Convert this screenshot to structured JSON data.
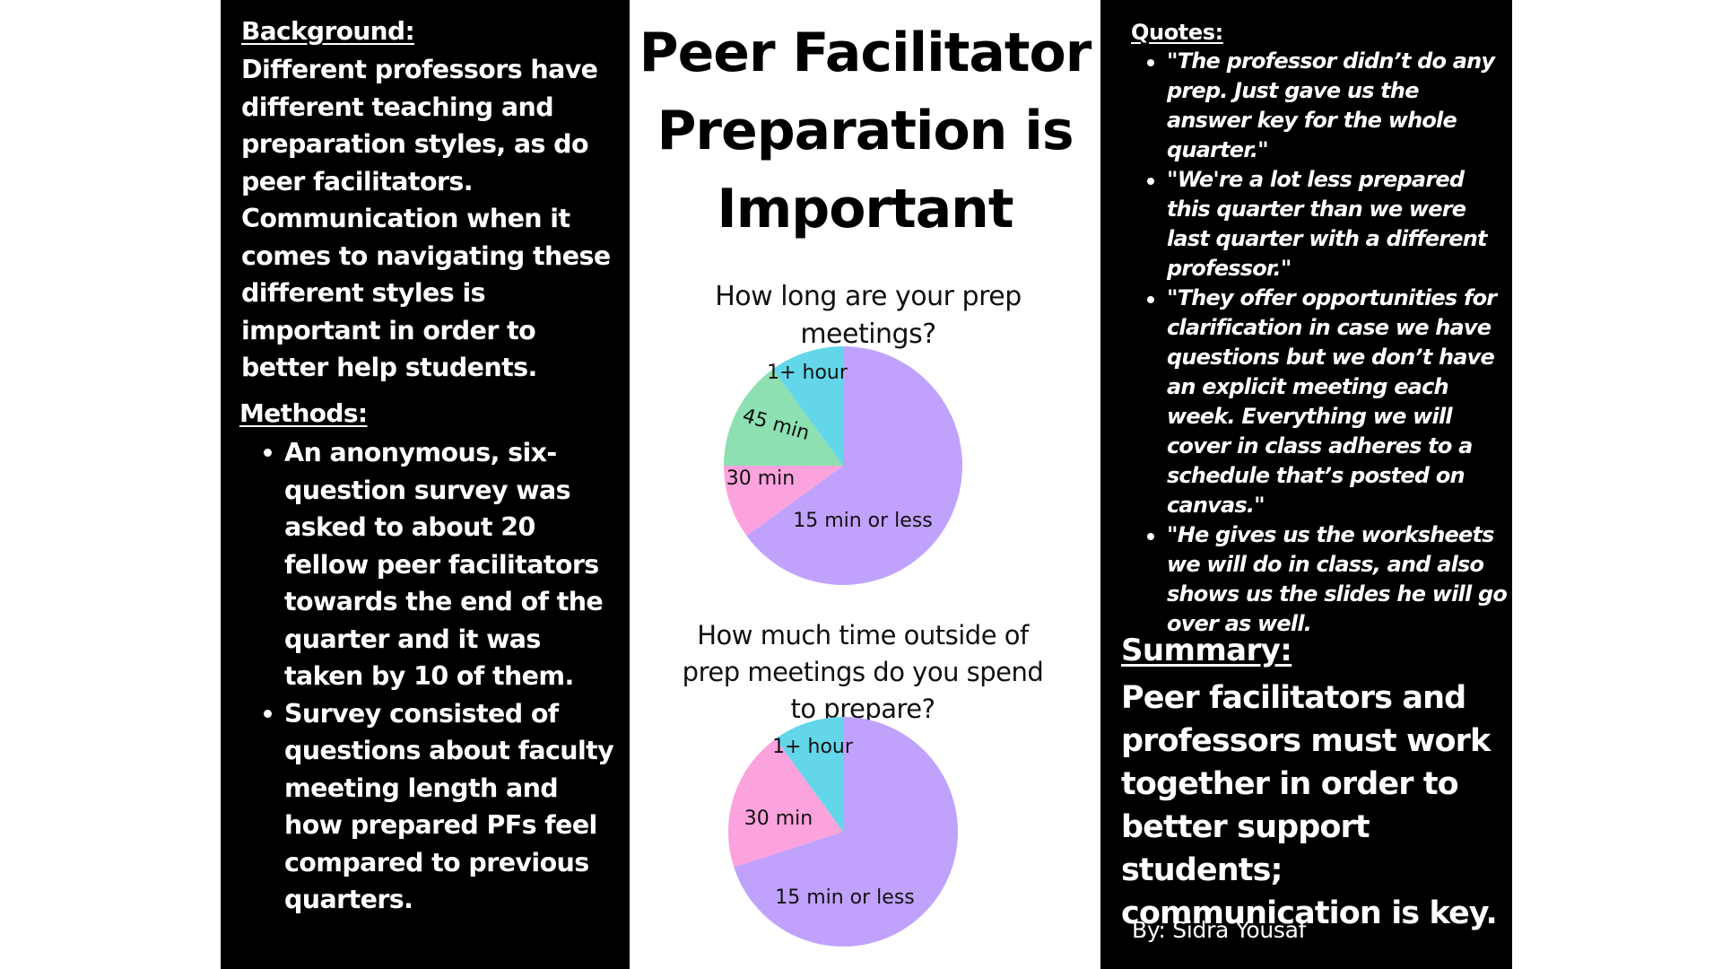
{
  "background": {
    "heading": "Background:",
    "text": "Different professors have different teaching and preparation styles, as do peer facilitators. Communication when it comes to navigating these different styles is important in order to better help students."
  },
  "methods": {
    "heading": "Methods:",
    "items": [
      "An anonymous, six-question survey was asked to about 20 fellow peer facilitators towards the end of the quarter and it was taken by 10 of them.",
      "Survey consisted of questions about faculty meeting length and how prepared PFs feel compared to previous quarters."
    ]
  },
  "title": "Peer Facilitator Preparation is Important",
  "quotes": {
    "heading": "Quotes:",
    "items": [
      "\"The professor didn’t do any prep. Just gave us the answer key for the whole quarter.\"",
      "\"We're a lot less prepared this quarter than we were last quarter with a different professor.\"",
      "\"They offer opportunities for clarification in case we have questions but we don’t have an explicit meeting each week. Everything we will cover in class adheres to a schedule that’s posted on canvas.\"",
      "\"He gives us the worksheets we will do in class, and also shows us the slides he will go over as well."
    ]
  },
  "summary": {
    "heading": "Summary:",
    "text": "Peer facilitators and professors must work together in order to better support students; communication is key."
  },
  "byline": "By: Sidra Yousaf",
  "colors": {
    "panel": "#000000",
    "text_on_panel": "#ffffff",
    "purple": "#c0a2fd",
    "pink": "#fca2dd",
    "green": "#8ce0b1",
    "cyan": "#63d6ea"
  },
  "chart_data": [
    {
      "type": "pie",
      "title": "How long are your prep meetings?",
      "categories": [
        "15 min or less",
        "30 min",
        "45 min",
        "1+ hour"
      ],
      "values": [
        65,
        10,
        15,
        10
      ],
      "colors": [
        "#c0a2fd",
        "#fca2dd",
        "#8ce0b1",
        "#63d6ea"
      ]
    },
    {
      "type": "pie",
      "title": "How much time outside of prep meetings do you spend to prepare?",
      "categories": [
        "15 min or less",
        "30 min",
        "1+ hour"
      ],
      "values": [
        70,
        20,
        10
      ],
      "colors": [
        "#c0a2fd",
        "#fca2dd",
        "#63d6ea"
      ]
    }
  ]
}
